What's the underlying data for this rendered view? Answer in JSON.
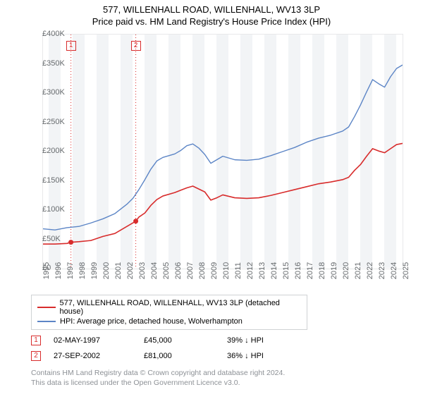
{
  "title": "577, WILLENHALL ROAD, WILLENHALL, WV13 3LP",
  "subtitle": "Price paid vs. HM Land Registry's House Price Index (HPI)",
  "chart": {
    "type": "line",
    "background_color": "#ffffff",
    "grid_fill_colors": [
      "#ffffff",
      "#f2f4f6"
    ],
    "grid_line_color": "#e8e9ea",
    "title_fontsize": 13,
    "label_fontsize": 11,
    "x": {
      "min": 1995,
      "max": 2025,
      "ticks": [
        1995,
        1996,
        1997,
        1998,
        1999,
        2000,
        2001,
        2002,
        2003,
        2004,
        2005,
        2006,
        2007,
        2008,
        2009,
        2010,
        2011,
        2012,
        2013,
        2014,
        2015,
        2016,
        2017,
        2018,
        2019,
        2020,
        2021,
        2022,
        2023,
        2024,
        2025
      ],
      "tick_rotation": -90
    },
    "y": {
      "min": 0,
      "max": 400000,
      "ticks": [
        0,
        50000,
        100000,
        150000,
        200000,
        250000,
        300000,
        350000,
        400000
      ],
      "tick_labels": [
        "£0",
        "£50K",
        "£100K",
        "£150K",
        "£200K",
        "£250K",
        "£300K",
        "£350K",
        "£400K"
      ]
    },
    "series": [
      {
        "name": "577, WILLENHALL ROAD, WILLENHALL, WV13 3LP (detached house)",
        "color": "#d82c2c",
        "line_width": 1.6,
        "data": [
          [
            1995,
            42000
          ],
          [
            1996,
            42000
          ],
          [
            1997,
            43000
          ],
          [
            1997.33,
            45000
          ],
          [
            1998,
            46000
          ],
          [
            1999,
            48000
          ],
          [
            2000,
            55000
          ],
          [
            2001,
            60000
          ],
          [
            2002,
            72000
          ],
          [
            2002.74,
            81000
          ],
          [
            2003,
            88000
          ],
          [
            2003.5,
            95000
          ],
          [
            2004,
            108000
          ],
          [
            2004.5,
            118000
          ],
          [
            2005,
            124000
          ],
          [
            2006,
            130000
          ],
          [
            2006.5,
            134000
          ],
          [
            2007,
            138000
          ],
          [
            2007.5,
            141000
          ],
          [
            2008,
            136000
          ],
          [
            2008.5,
            131000
          ],
          [
            2009,
            117000
          ],
          [
            2009.5,
            121000
          ],
          [
            2010,
            126000
          ],
          [
            2011,
            121000
          ],
          [
            2012,
            120000
          ],
          [
            2013,
            121000
          ],
          [
            2014,
            125000
          ],
          [
            2015,
            130000
          ],
          [
            2016,
            135000
          ],
          [
            2017,
            140000
          ],
          [
            2018,
            145000
          ],
          [
            2019,
            148000
          ],
          [
            2020,
            152000
          ],
          [
            2020.5,
            156000
          ],
          [
            2021,
            168000
          ],
          [
            2021.5,
            178000
          ],
          [
            2022,
            192000
          ],
          [
            2022.5,
            205000
          ],
          [
            2023,
            201000
          ],
          [
            2023.5,
            198000
          ],
          [
            2024,
            205000
          ],
          [
            2024.5,
            212000
          ],
          [
            2025,
            214000
          ]
        ]
      },
      {
        "name": "HPI: Average price, detached house, Wolverhampton",
        "color": "#5c85c6",
        "line_width": 1.4,
        "data": [
          [
            1995,
            68000
          ],
          [
            1996,
            66000
          ],
          [
            1997,
            70000
          ],
          [
            1998,
            72000
          ],
          [
            1999,
            78000
          ],
          [
            2000,
            85000
          ],
          [
            2001,
            94000
          ],
          [
            2002,
            110000
          ],
          [
            2002.5,
            120000
          ],
          [
            2003,
            135000
          ],
          [
            2003.5,
            152000
          ],
          [
            2004,
            170000
          ],
          [
            2004.5,
            184000
          ],
          [
            2005,
            190000
          ],
          [
            2006,
            196000
          ],
          [
            2006.5,
            202000
          ],
          [
            2007,
            210000
          ],
          [
            2007.5,
            213000
          ],
          [
            2008,
            206000
          ],
          [
            2008.5,
            195000
          ],
          [
            2009,
            180000
          ],
          [
            2009.5,
            186000
          ],
          [
            2010,
            192000
          ],
          [
            2011,
            186000
          ],
          [
            2012,
            185000
          ],
          [
            2013,
            187000
          ],
          [
            2014,
            193000
          ],
          [
            2015,
            200000
          ],
          [
            2016,
            207000
          ],
          [
            2017,
            216000
          ],
          [
            2018,
            223000
          ],
          [
            2019,
            228000
          ],
          [
            2020,
            235000
          ],
          [
            2020.5,
            242000
          ],
          [
            2021,
            260000
          ],
          [
            2021.5,
            280000
          ],
          [
            2022,
            302000
          ],
          [
            2022.5,
            323000
          ],
          [
            2023,
            316000
          ],
          [
            2023.5,
            310000
          ],
          [
            2024,
            328000
          ],
          [
            2024.5,
            342000
          ],
          [
            2025,
            348000
          ]
        ]
      }
    ],
    "sale_markers": [
      {
        "n": 1,
        "x": 1997.33,
        "y": 45000,
        "line_color": "#d82c2c",
        "point_color": "#d82c2c"
      },
      {
        "n": 2,
        "x": 2002.74,
        "y": 81000,
        "line_color": "#d82c2c",
        "point_color": "#d82c2c"
      }
    ],
    "alt_shade_start": 1994.5
  },
  "legend": {
    "items": [
      {
        "color": "#d82c2c",
        "label": "577, WILLENHALL ROAD, WILLENHALL, WV13 3LP (detached house)"
      },
      {
        "color": "#5c85c6",
        "label": "HPI: Average price, detached house, Wolverhampton"
      }
    ]
  },
  "sales": [
    {
      "n": 1,
      "box_color": "#d82c2c",
      "date": "02-MAY-1997",
      "price": "£45,000",
      "rel": "39% ↓ HPI"
    },
    {
      "n": 2,
      "box_color": "#d82c2c",
      "date": "27-SEP-2002",
      "price": "£81,000",
      "rel": "36% ↓ HPI"
    }
  ],
  "footnote_lines": [
    "Contains HM Land Registry data © Crown copyright and database right 2024.",
    "This data is licensed under the Open Government Licence v3.0."
  ]
}
